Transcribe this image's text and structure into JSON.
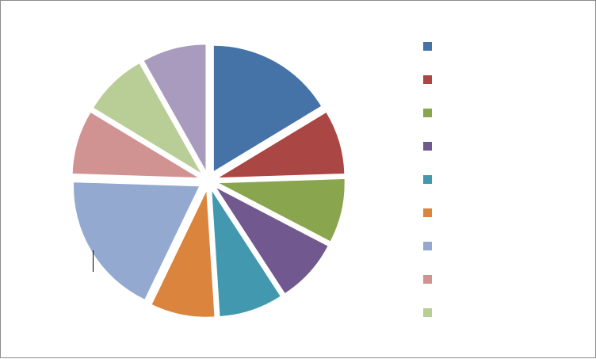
{
  "chart_data": {
    "type": "pie",
    "exploded": true,
    "legend": "right",
    "slices": [
      {
        "label": "",
        "value": 16,
        "color": "#4572A7"
      },
      {
        "label": "",
        "value": 8,
        "color": "#AA4643"
      },
      {
        "label": "",
        "value": 8,
        "color": "#89A54E"
      },
      {
        "label": "",
        "value": 8,
        "color": "#71588F"
      },
      {
        "label": "",
        "value": 8,
        "color": "#4198AF"
      },
      {
        "label": "",
        "value": 8,
        "color": "#DB843D"
      },
      {
        "label": "",
        "value": 18,
        "color": "#93A9CF"
      },
      {
        "label": "",
        "value": 8,
        "color": "#D19392"
      },
      {
        "label": "",
        "value": 8,
        "color": "#B9CD96"
      },
      {
        "label": "",
        "value": 8,
        "color": "#A99BBD"
      }
    ],
    "legend_entries": [
      {
        "label": "",
        "color": "#4572A7"
      },
      {
        "label": "",
        "color": "#AA4643"
      },
      {
        "label": "",
        "color": "#89A54E"
      },
      {
        "label": "",
        "color": "#71588F"
      },
      {
        "label": "",
        "color": "#4198AF"
      },
      {
        "label": "",
        "color": "#DB843D"
      },
      {
        "label": "",
        "color": "#93A9CF"
      },
      {
        "label": "",
        "color": "#D19392"
      },
      {
        "label": "",
        "color": "#B9CD96"
      }
    ]
  }
}
